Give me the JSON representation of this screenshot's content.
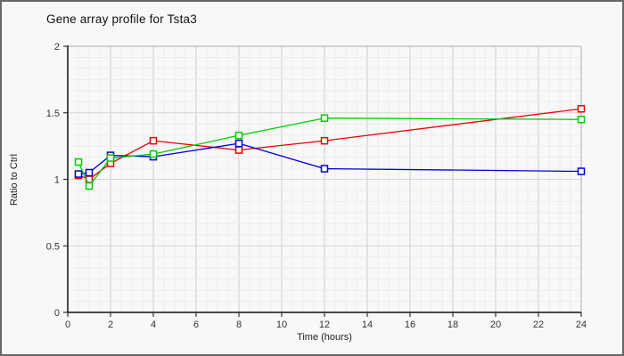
{
  "chart_data": {
    "type": "line",
    "title": "Gene array profile for Tsta3",
    "xlabel": "Time (hours)",
    "ylabel": "Ratio to Ctrl",
    "xlim": [
      0,
      24
    ],
    "ylim": [
      0,
      2
    ],
    "grid": "fine minor grid with darker major gridlines",
    "legend": "none",
    "x_ticks": [
      "0",
      "2",
      "4",
      "6",
      "8",
      "10",
      "12",
      "14",
      "16",
      "18",
      "20",
      "22",
      "24"
    ],
    "x_tick_values": [
      0,
      2,
      4,
      6,
      8,
      10,
      12,
      14,
      16,
      18,
      20,
      22,
      24
    ],
    "y_ticks": [
      "0",
      "0.5",
      "1",
      "1.5",
      "2"
    ],
    "y_tick_values": [
      0,
      0.5,
      1,
      1.5,
      2
    ],
    "x": [
      0.5,
      1,
      2,
      4,
      8,
      12,
      24
    ],
    "series": [
      {
        "name": "red-series",
        "color": "#ee0000",
        "marker": "open-square",
        "values": [
          1.03,
          1.0,
          1.12,
          1.29,
          1.22,
          1.29,
          1.53
        ]
      },
      {
        "name": "blue-series",
        "color": "#0000dd",
        "marker": "open-square",
        "values": [
          1.04,
          1.05,
          1.18,
          1.17,
          1.27,
          1.08,
          1.06
        ]
      },
      {
        "name": "green-series",
        "color": "#00cc00",
        "marker": "open-square",
        "values": [
          1.13,
          0.95,
          1.16,
          1.19,
          1.33,
          1.46,
          1.45
        ]
      }
    ],
    "colors": {
      "background": "#f8f8f8",
      "frame_border": "#666666",
      "axis": "#111111",
      "plot_border": "#bbbbbb",
      "grid_minor": "#ececec",
      "grid_major_v": "#cccccc",
      "grid_major_h": "#d6d6d6"
    }
  }
}
